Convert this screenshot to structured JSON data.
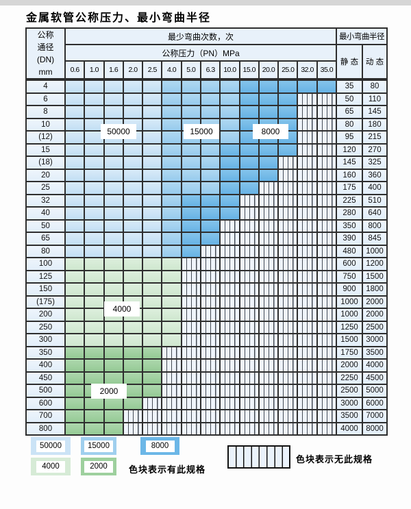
{
  "title": "金属软管公称压力、最小弯曲半径",
  "table": {
    "header": {
      "dn_lines": [
        "公称",
        "通径",
        "(DN)",
        "mm"
      ],
      "cycles_label": "最少弯曲次数，次",
      "pressure_label": "公称压力（PN）MPa",
      "radius_label": "最小弯曲半径",
      "static_label": "静 态",
      "dynamic_label": "动 态",
      "pressures": [
        "0.6",
        "1.0",
        "1.6",
        "2.0",
        "2.5",
        "4.0",
        "5.0",
        "6.3",
        "10.0",
        "15.0",
        "20.0",
        "25.0",
        "32.0",
        "35.0"
      ]
    },
    "cell_legend": {
      "L": "50000 cycles zone",
      "M": "15000 cycles zone",
      "D": "8000 cycles zone",
      "G": "4000 cycles zone",
      "E": "2000 cycles zone",
      "X": "no specification (hatched)"
    },
    "rows": [
      {
        "dn": "4",
        "cells": "LLLLLMMMMDDDDD",
        "static": "35",
        "dynamic": "80"
      },
      {
        "dn": "6",
        "cells": "LLLLLMMMMDDDXX",
        "static": "50",
        "dynamic": "110"
      },
      {
        "dn": "8",
        "cells": "LLLLLMMMMDDDXX",
        "static": "65",
        "dynamic": "145"
      },
      {
        "dn": "10",
        "cells": "LLLLLMMMMDDDXX",
        "static": "80",
        "dynamic": "180"
      },
      {
        "dn": "(12)",
        "cells": "LLLLLMMMMDDDXX",
        "static": "95",
        "dynamic": "215"
      },
      {
        "dn": "15",
        "cells": "LLLLLMMMDDDDXX",
        "static": "120",
        "dynamic": "270"
      },
      {
        "dn": "(18)",
        "cells": "LLLLLMMMDDDXXX",
        "static": "145",
        "dynamic": "325"
      },
      {
        "dn": "20",
        "cells": "LLLLLMMMDDDXXX",
        "static": "160",
        "dynamic": "360"
      },
      {
        "dn": "25",
        "cells": "LLLLLMMMDDXXXX",
        "static": "175",
        "dynamic": "400"
      },
      {
        "dn": "32",
        "cells": "LLLLLMDDDXXXXX",
        "static": "225",
        "dynamic": "510"
      },
      {
        "dn": "40",
        "cells": "LLLLLMDDDXXXXX",
        "static": "280",
        "dynamic": "640"
      },
      {
        "dn": "50",
        "cells": "LLLLLMDDXXXXXX",
        "static": "350",
        "dynamic": "800"
      },
      {
        "dn": "65",
        "cells": "LLLLLMDDXXXXXX",
        "static": "390",
        "dynamic": "845"
      },
      {
        "dn": "80",
        "cells": "LLLLLMDXXXXXXX",
        "static": "480",
        "dynamic": "1000"
      },
      {
        "dn": "100",
        "cells": "GGGGGGXXXXXXXX",
        "static": "600",
        "dynamic": "1200"
      },
      {
        "dn": "125",
        "cells": "GGGGGGXXXXXXXX",
        "static": "750",
        "dynamic": "1500"
      },
      {
        "dn": "150",
        "cells": "GGGGGGXXXXXXXX",
        "static": "900",
        "dynamic": "1800"
      },
      {
        "dn": "(175)",
        "cells": "GGGGGGXXXXXXXX",
        "static": "1000",
        "dynamic": "2000"
      },
      {
        "dn": "200",
        "cells": "GGGGGGXXXXXXXX",
        "static": "1000",
        "dynamic": "2000"
      },
      {
        "dn": "250",
        "cells": "GGGGGGXXXXXXXX",
        "static": "1250",
        "dynamic": "2500"
      },
      {
        "dn": "300",
        "cells": "GGGGGGXXXXXXXX",
        "static": "1500",
        "dynamic": "3000"
      },
      {
        "dn": "350",
        "cells": "EEEEEXXXXXXXXX",
        "static": "1750",
        "dynamic": "3500"
      },
      {
        "dn": "400",
        "cells": "EEEEEXXXXXXXXX",
        "static": "2000",
        "dynamic": "4000"
      },
      {
        "dn": "450",
        "cells": "EEEEEXXXXXXXXX",
        "static": "2250",
        "dynamic": "4500"
      },
      {
        "dn": "500",
        "cells": "EEEEEXXXXXXXXX",
        "static": "2500",
        "dynamic": "5000"
      },
      {
        "dn": "600",
        "cells": "EEEEXXXXXXXXXX",
        "static": "3000",
        "dynamic": "6000"
      },
      {
        "dn": "700",
        "cells": "EEEXXXXXXXXXXX",
        "static": "3500",
        "dynamic": "7000"
      },
      {
        "dn": "800",
        "cells": "EEEXXXXXXXXXXX",
        "static": "4000",
        "dynamic": "8000"
      }
    ],
    "zone_labels": {
      "blue_light": "50000",
      "blue_mid": "15000",
      "blue_dark": "8000",
      "green_light": "4000",
      "green_mid": "2000"
    }
  },
  "legend": {
    "swatches": [
      {
        "label": "50000",
        "color": "#cbe3f6"
      },
      {
        "label": "15000",
        "color": "#9fcfee"
      },
      {
        "label": "8000",
        "color": "#6cb7e7"
      },
      {
        "label": "4000",
        "color": "#d6ebd6"
      },
      {
        "label": "2000",
        "color": "#9ed09e"
      }
    ],
    "has_spec_text": "色块表示有此规格",
    "no_spec_text": "色块表示无此规格"
  },
  "colors": {
    "zone_50000": "#cbe3f6",
    "zone_15000": "#9fcfee",
    "zone_8000": "#6cb7e7",
    "zone_4000": "#d6ebd6",
    "zone_2000": "#9ed09e",
    "header_bg": "#e8f1fa",
    "grid_line": "#2e2e2e"
  }
}
